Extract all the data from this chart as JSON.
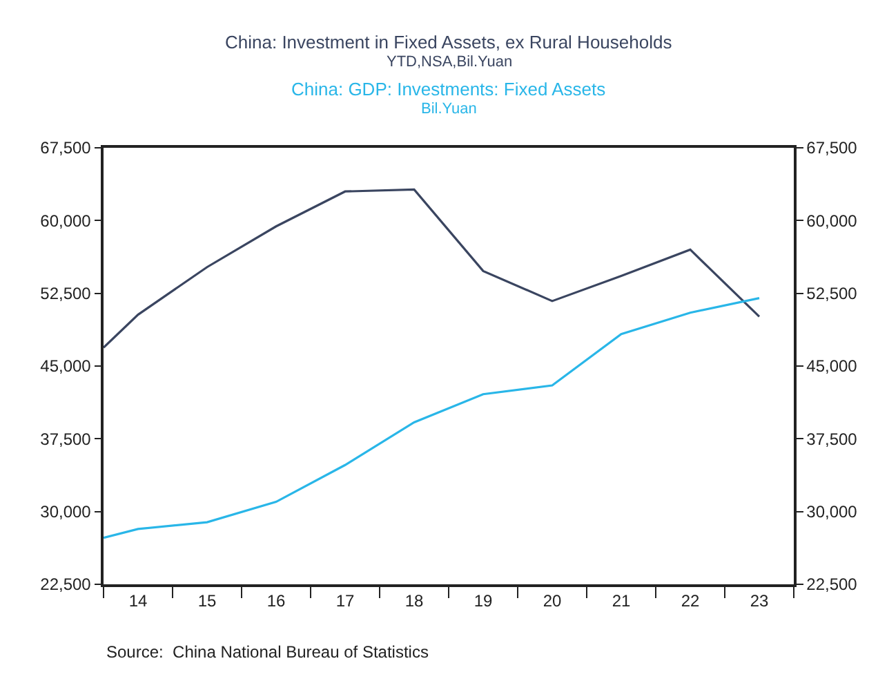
{
  "chart_data": {
    "type": "line",
    "x": [
      2013.5,
      2014,
      2015,
      2016,
      2017,
      2018,
      2019,
      2020,
      2021,
      2022,
      2023
    ],
    "series": [
      {
        "name": "China: Investment in Fixed Assets, ex Rural Households\nYTD,NSA,Bil.Yuan",
        "color": "#3a4560",
        "values": [
          46900,
          50300,
          55200,
          59400,
          63000,
          63200,
          54800,
          51700,
          54300,
          57000,
          50100
        ]
      },
      {
        "name": "China: GDP: Investments: Fixed Assets\nBil.Yuan",
        "color": "#29b6e8",
        "values": [
          27300,
          28200,
          28900,
          31000,
          34800,
          39200,
          42100,
          43000,
          48300,
          50500,
          52000
        ]
      }
    ],
    "xlim": [
      2013.5,
      2023.5
    ],
    "xticks": [
      {
        "value": 2013.5,
        "label": null
      },
      {
        "value": 2014,
        "label": "14"
      },
      {
        "value": 2014.5,
        "label": null
      },
      {
        "value": 2015,
        "label": "15"
      },
      {
        "value": 2015.5,
        "label": null
      },
      {
        "value": 2016,
        "label": "16"
      },
      {
        "value": 2016.5,
        "label": null
      },
      {
        "value": 2017,
        "label": "17"
      },
      {
        "value": 2017.5,
        "label": null
      },
      {
        "value": 2018,
        "label": "18"
      },
      {
        "value": 2018.5,
        "label": null
      },
      {
        "value": 2019,
        "label": "19"
      },
      {
        "value": 2019.5,
        "label": null
      },
      {
        "value": 2020,
        "label": "20"
      },
      {
        "value": 2020.5,
        "label": null
      },
      {
        "value": 2021,
        "label": "21"
      },
      {
        "value": 2021.5,
        "label": null
      },
      {
        "value": 2022,
        "label": "22"
      },
      {
        "value": 2022.5,
        "label": null
      },
      {
        "value": 2023,
        "label": "23"
      },
      {
        "value": 2023.5,
        "label": null
      }
    ],
    "ylim": [
      22500,
      67500
    ],
    "yticks": [
      {
        "value": 22500,
        "label": "22,500"
      },
      {
        "value": 30000,
        "label": "30,000"
      },
      {
        "value": 37500,
        "label": "37,500"
      },
      {
        "value": 45000,
        "label": "45,000"
      },
      {
        "value": 52500,
        "label": "52,500"
      },
      {
        "value": 60000,
        "label": "60,000"
      },
      {
        "value": 67500,
        "label": "67,500"
      }
    ],
    "y2lim": [
      22500,
      67500
    ],
    "y2ticks": [
      {
        "value": 22500,
        "label": "22,500"
      },
      {
        "value": 30000,
        "label": "30,000"
      },
      {
        "value": 37500,
        "label": "37,500"
      },
      {
        "value": 45000,
        "label": "45,000"
      },
      {
        "value": 52500,
        "label": "52,500"
      },
      {
        "value": 60000,
        "label": "60,000"
      },
      {
        "value": 67500,
        "label": "67,500"
      }
    ],
    "legend": "top",
    "marker": "none",
    "line_style": "solid",
    "annotations": [
      "Source:  China National Bureau of Statistics"
    ]
  }
}
